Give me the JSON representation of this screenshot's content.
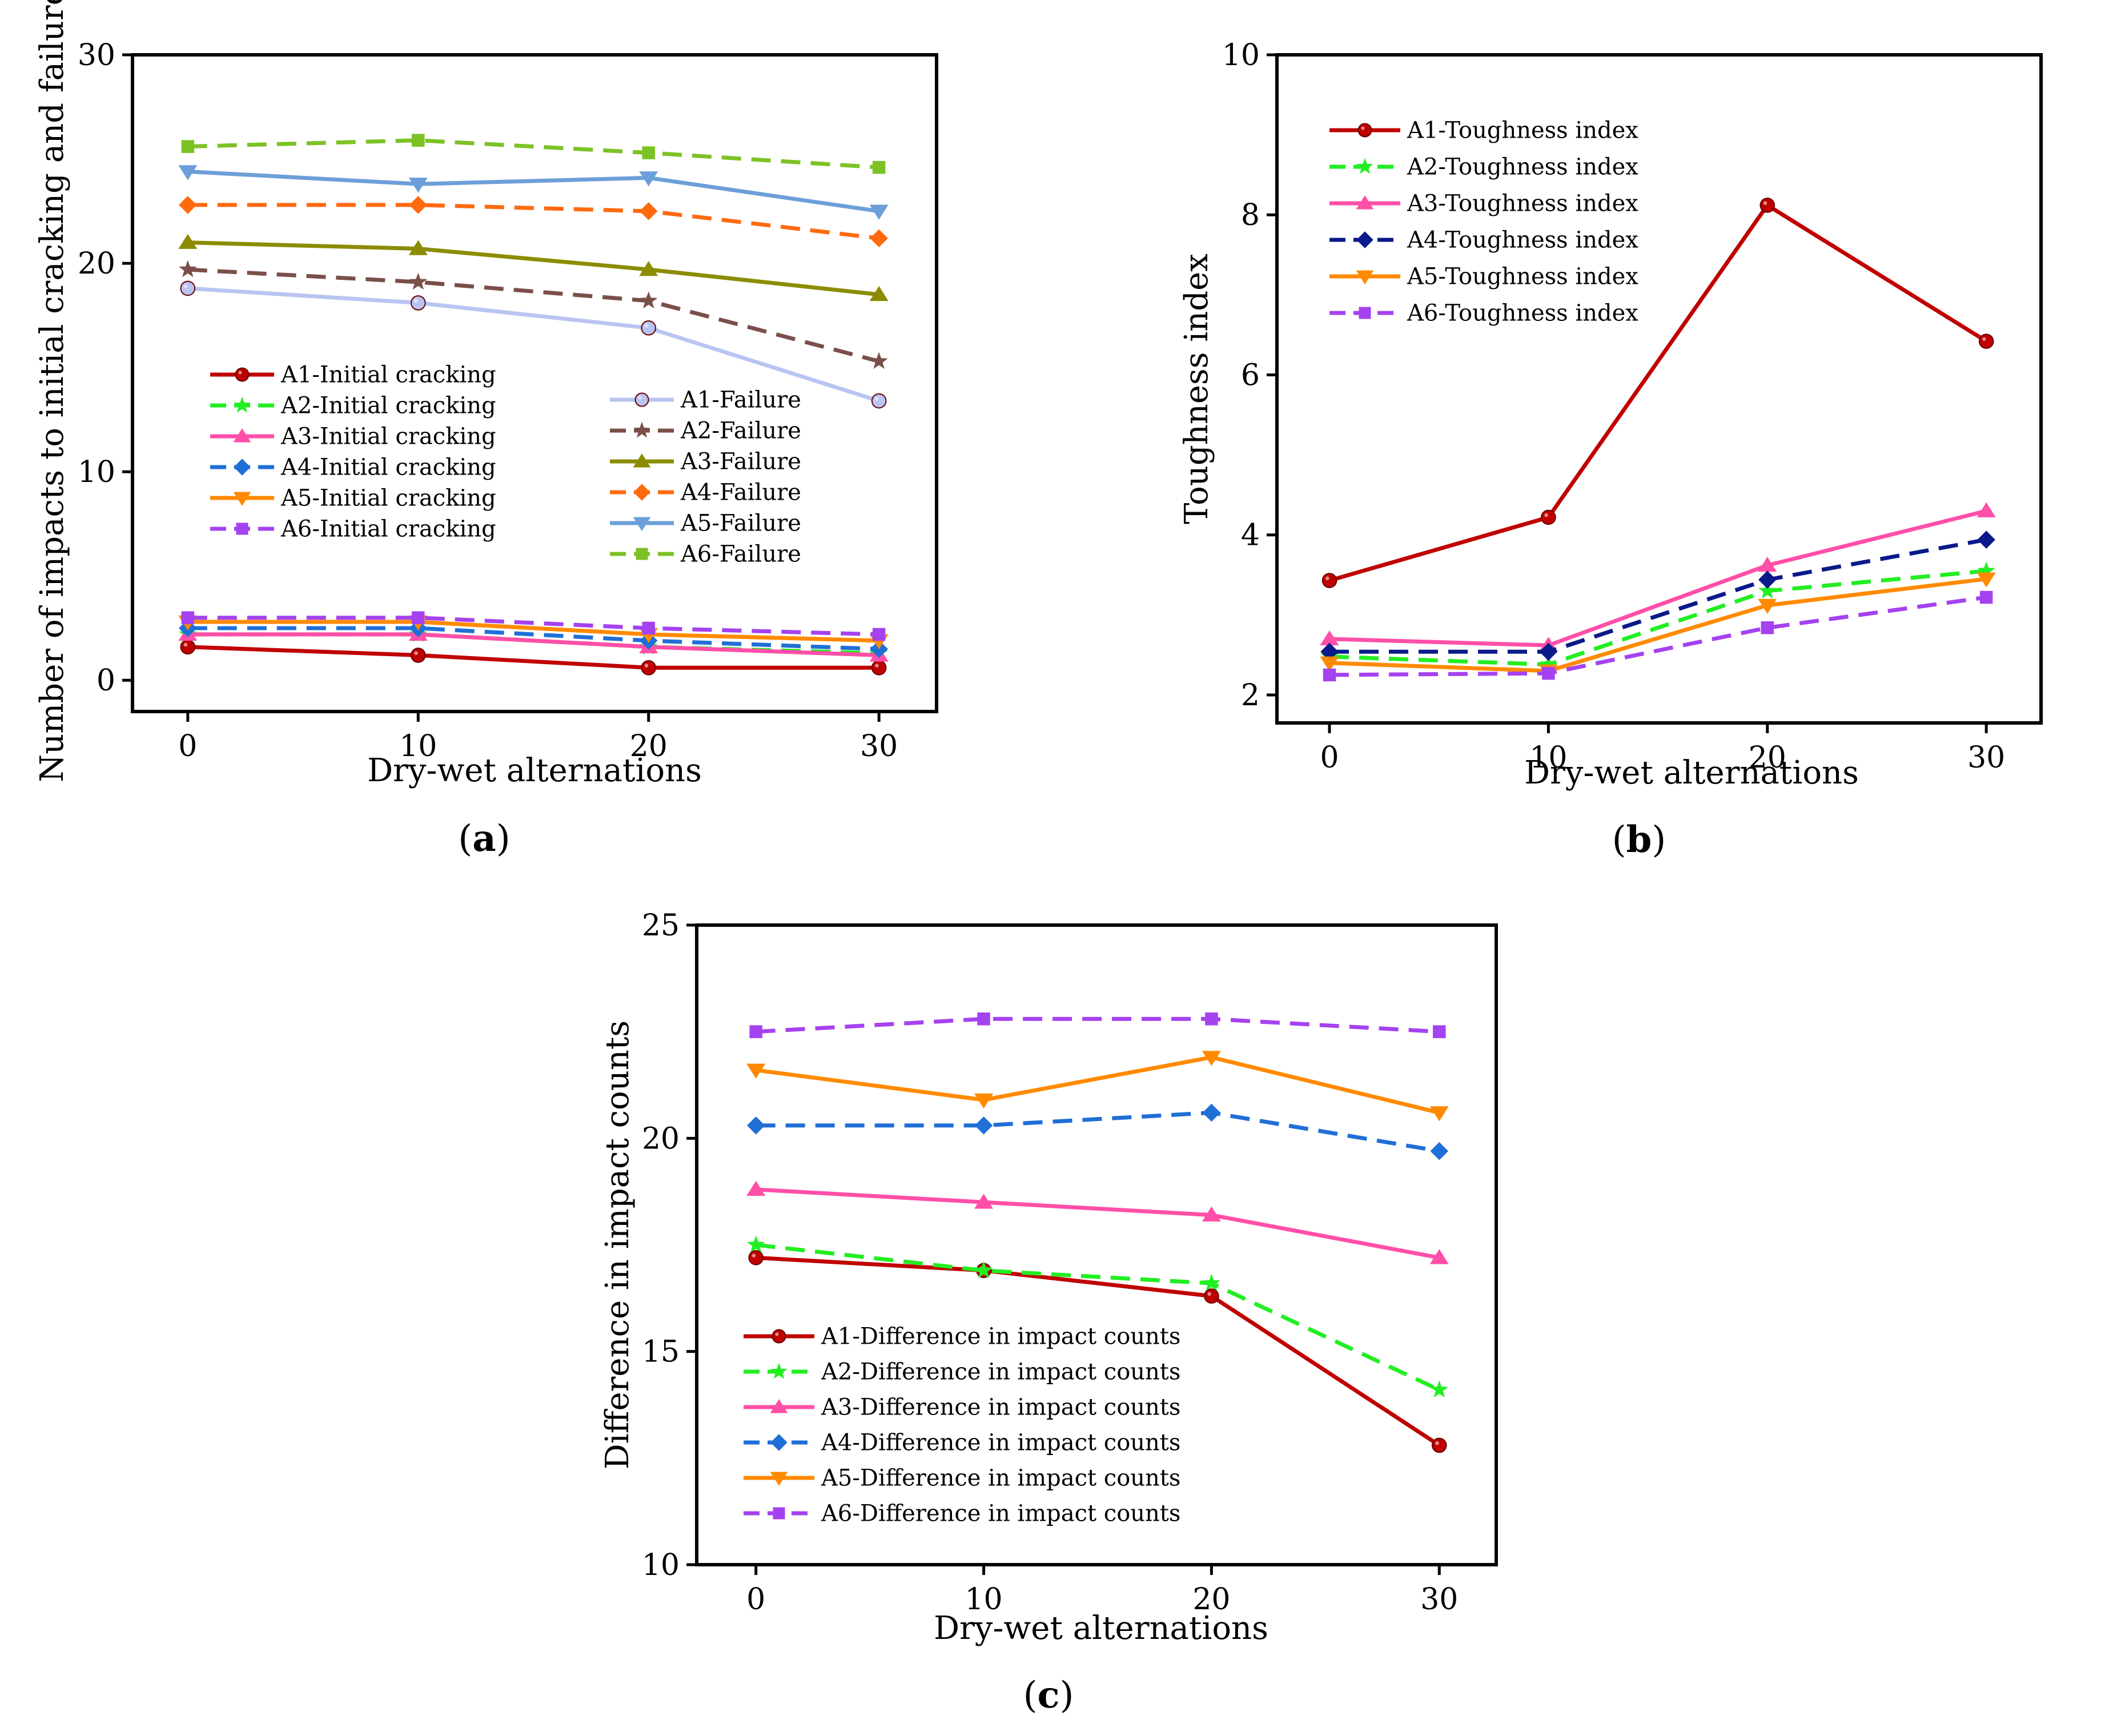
{
  "colors": {
    "A1": "#c00000",
    "A2": "#22ee22",
    "A3": "#ff4fa8",
    "A4": "#1f6fd6",
    "A5": "#ff8a00",
    "A6": "#a542f0",
    "A1_failure": "#b9c4f2",
    "A2_failure": "#7a4f4a",
    "A3_failure": "#8c8c00",
    "A4_failure": "#ff6a10",
    "A5_failure": "#6c9fd8",
    "A6_failure": "#7cc225",
    "A4_toughness": "#0a1a8a"
  },
  "chart_data": [
    {
      "type": "line",
      "panel_label": "(a)",
      "panel_letter": "a",
      "xlabel": "Dry-wet alternations",
      "ylabel": "Number of impacts to initial cracking and failure",
      "x": [
        0,
        10,
        20,
        30
      ],
      "xticks": [
        "0",
        "10",
        "20",
        "30"
      ],
      "yticks": [
        "0",
        "10",
        "20",
        "30"
      ],
      "ylim": [
        -1.5,
        30
      ],
      "xlim": [
        -2.4,
        32.5
      ],
      "legend": [
        "left-middle",
        "right-middle"
      ],
      "series": [
        {
          "name": "A1-Initial cracking",
          "values": [
            1.6,
            1.2,
            0.6,
            0.6
          ],
          "color": "#c00000",
          "marker": "circle",
          "dash": false
        },
        {
          "name": "A2-Initial cracking",
          "values": [
            2.2,
            2.2,
            1.6,
            1.3
          ],
          "color": "#22ee22",
          "marker": "star",
          "dash": true
        },
        {
          "name": "A3-Initial cracking",
          "values": [
            2.2,
            2.2,
            1.6,
            1.2
          ],
          "color": "#ff4fa8",
          "marker": "triangle-up",
          "dash": false
        },
        {
          "name": "A4-Initial cracking",
          "values": [
            2.5,
            2.5,
            1.9,
            1.5
          ],
          "color": "#1f6fd6",
          "marker": "diamond",
          "dash": true
        },
        {
          "name": "A5-Initial cracking",
          "values": [
            2.8,
            2.8,
            2.2,
            1.9
          ],
          "color": "#ff8a00",
          "marker": "triangle-down",
          "dash": false
        },
        {
          "name": "A6-Initial cracking",
          "values": [
            3.0,
            3.0,
            2.5,
            2.2
          ],
          "color": "#a542f0",
          "marker": "square",
          "dash": true
        },
        {
          "name": "A1-Failure",
          "values": [
            18.8,
            18.1,
            16.9,
            13.4
          ],
          "color": "#b9c4f2",
          "marker": "circle",
          "dash": false
        },
        {
          "name": "A2-Failure",
          "values": [
            19.7,
            19.1,
            18.2,
            15.3
          ],
          "color": "#7a4f4a",
          "marker": "star",
          "dash": true
        },
        {
          "name": "A3-Failure",
          "values": [
            21.0,
            20.7,
            19.7,
            18.5
          ],
          "color": "#8c8c00",
          "marker": "triangle-up",
          "dash": false
        },
        {
          "name": "A4-Failure",
          "values": [
            22.8,
            22.8,
            22.5,
            21.2
          ],
          "color": "#ff6a10",
          "marker": "diamond",
          "dash": true
        },
        {
          "name": "A5-Failure",
          "values": [
            24.4,
            23.8,
            24.1,
            22.5
          ],
          "color": "#6c9fd8",
          "marker": "triangle-down",
          "dash": false
        },
        {
          "name": "A6-Failure",
          "values": [
            25.6,
            25.9,
            25.3,
            24.6
          ],
          "color": "#7cc225",
          "marker": "square",
          "dash": true
        }
      ]
    },
    {
      "type": "line",
      "panel_label": "(b)",
      "panel_letter": "b",
      "xlabel": "Dry-wet alternations",
      "ylabel": "Toughness index",
      "x": [
        0,
        10,
        20,
        30
      ],
      "xticks": [
        "0",
        "10",
        "20",
        "30"
      ],
      "yticks": [
        "2",
        "4",
        "6",
        "8",
        "10"
      ],
      "ylim": [
        1.65,
        10
      ],
      "xlim": [
        -2.4,
        32.5
      ],
      "legend": "top-left",
      "series": [
        {
          "name": "A1-Toughness index",
          "values": [
            3.43,
            4.22,
            8.12,
            6.42
          ],
          "color": "#c00000",
          "marker": "circle",
          "dash": false
        },
        {
          "name": "A2-Toughness index",
          "values": [
            2.48,
            2.38,
            3.3,
            3.55
          ],
          "color": "#22ee22",
          "marker": "star",
          "dash": true
        },
        {
          "name": "A3-Toughness index",
          "values": [
            2.7,
            2.62,
            3.62,
            4.3
          ],
          "color": "#ff4fa8",
          "marker": "triangle-up",
          "dash": false
        },
        {
          "name": "A4-Toughness index",
          "values": [
            2.54,
            2.54,
            3.44,
            3.94
          ],
          "color": "#0a1a8a",
          "marker": "diamond",
          "dash": true
        },
        {
          "name": "A5-Toughness index",
          "values": [
            2.4,
            2.3,
            3.12,
            3.45
          ],
          "color": "#ff8a00",
          "marker": "triangle-down",
          "dash": false
        },
        {
          "name": "A6-Toughness index",
          "values": [
            2.25,
            2.27,
            2.84,
            3.22
          ],
          "color": "#a542f0",
          "marker": "square",
          "dash": true
        }
      ]
    },
    {
      "type": "line",
      "panel_label": "(c)",
      "panel_letter": "c",
      "xlabel": "Dry-wet alternations",
      "ylabel": "Difference in impact counts",
      "x": [
        0,
        10,
        20,
        30
      ],
      "xticks": [
        "0",
        "10",
        "20",
        "30"
      ],
      "yticks": [
        "10",
        "15",
        "20",
        "25"
      ],
      "ylim": [
        10,
        25
      ],
      "xlim": [
        -2.6,
        32.5
      ],
      "legend": "bottom-left",
      "series": [
        {
          "name": "A1-Difference in impact counts",
          "values": [
            17.2,
            16.9,
            16.3,
            12.8
          ],
          "color": "#c00000",
          "marker": "circle",
          "dash": false
        },
        {
          "name": "A2-Difference in impact counts",
          "values": [
            17.5,
            16.9,
            16.6,
            14.1
          ],
          "color": "#22ee22",
          "marker": "star",
          "dash": true
        },
        {
          "name": "A3-Difference in impact counts",
          "values": [
            18.8,
            18.5,
            18.2,
            17.2
          ],
          "color": "#ff4fa8",
          "marker": "triangle-up",
          "dash": false
        },
        {
          "name": "A4-Difference in impact counts",
          "values": [
            20.3,
            20.3,
            20.6,
            19.7
          ],
          "color": "#1f6fd6",
          "marker": "diamond",
          "dash": true
        },
        {
          "name": "A5-Difference in impact counts",
          "values": [
            21.6,
            20.9,
            21.9,
            20.6
          ],
          "color": "#ff8a00",
          "marker": "triangle-down",
          "dash": false
        },
        {
          "name": "A6-Difference in impact counts",
          "values": [
            22.5,
            22.8,
            22.8,
            22.5
          ],
          "color": "#a542f0",
          "marker": "square",
          "dash": true
        }
      ]
    }
  ]
}
